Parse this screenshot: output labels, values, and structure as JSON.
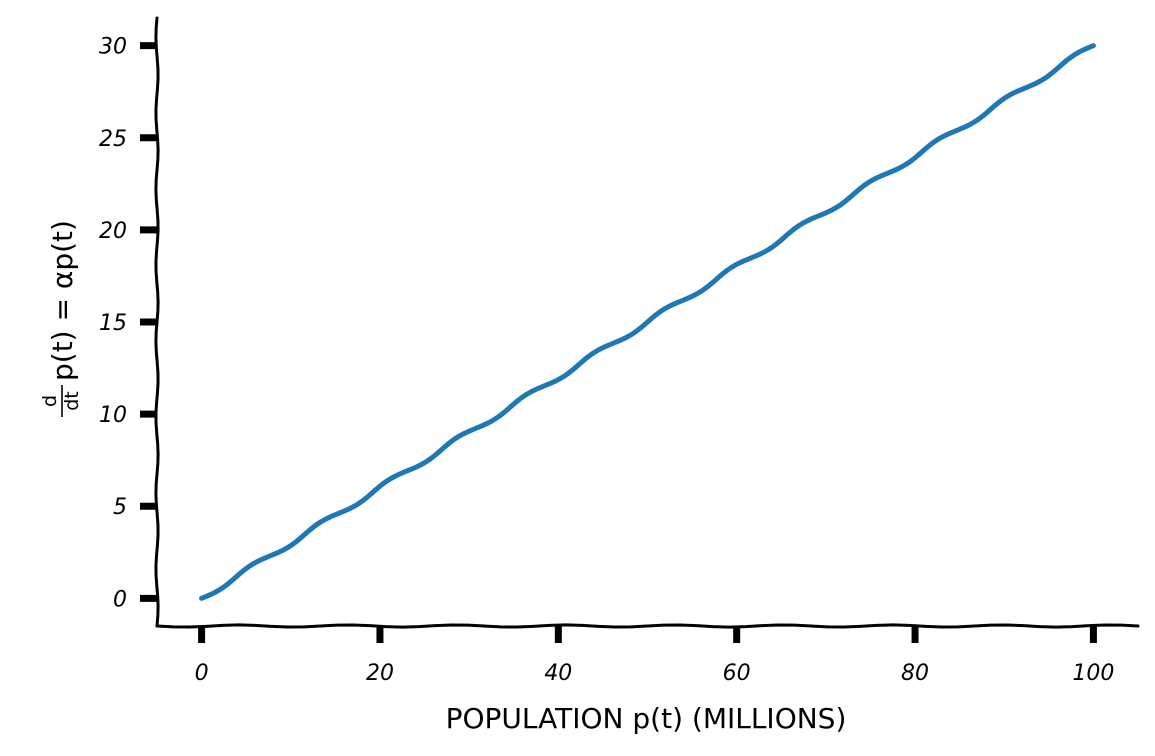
{
  "chart_data": {
    "type": "line",
    "title": "",
    "xlabel": "POPULATION p(t) (MILLIONS)",
    "ylabel": "d/dt p(t) = αp(t)",
    "ylabel_parts": {
      "frac_num": "d",
      "frac_den": "dt",
      "rest": "p(t) = αp(t)"
    },
    "xlim": [
      -5,
      105
    ],
    "ylim": [
      -1.5,
      31.5
    ],
    "xticks": [
      0,
      20,
      40,
      60,
      80,
      100
    ],
    "xtick_labels": [
      "0",
      "20",
      "40",
      "60",
      "80",
      "100"
    ],
    "yticks": [
      0,
      5,
      10,
      15,
      20,
      25,
      30
    ],
    "ytick_labels": [
      "0",
      "5",
      "10",
      "15",
      "20",
      "25",
      "30"
    ],
    "grid": false,
    "series": [
      {
        "color": "#1f77b4",
        "x": [
          0,
          10,
          20,
          30,
          40,
          50,
          60,
          70,
          80,
          90,
          100
        ],
        "y": [
          0,
          3,
          6,
          9,
          12,
          15,
          18,
          21,
          24,
          27,
          30
        ]
      }
    ]
  }
}
